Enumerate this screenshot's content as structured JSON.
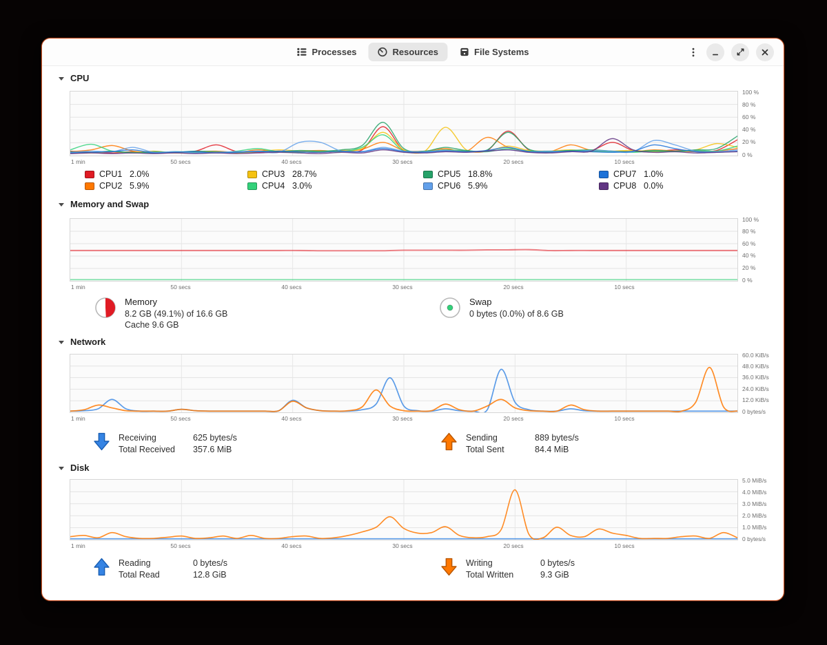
{
  "window": {
    "tabs": [
      {
        "label": "Processes",
        "icon": "process-list-icon",
        "active": false
      },
      {
        "label": "Resources",
        "icon": "speedometer-icon",
        "active": true
      },
      {
        "label": "File Systems",
        "icon": "disk-drive-icon",
        "active": false
      }
    ],
    "controls": {
      "menu_icon": "kebab-menu-icon",
      "minimize_icon": "minimize-icon",
      "maximize_icon": "restore-icon",
      "close_icon": "close-icon"
    }
  },
  "sections": {
    "cpu": {
      "title": "CPU",
      "legend": [
        {
          "name": "CPU1",
          "value": "2.0%",
          "color": "#e01b24"
        },
        {
          "name": "CPU2",
          "value": "5.9%",
          "color": "#ff7800"
        },
        {
          "name": "CPU3",
          "value": "28.7%",
          "color": "#f5c211"
        },
        {
          "name": "CPU4",
          "value": "3.0%",
          "color": "#33d17a"
        },
        {
          "name": "CPU5",
          "value": "18.8%",
          "color": "#26a269"
        },
        {
          "name": "CPU6",
          "value": "5.9%",
          "color": "#62a0ea"
        },
        {
          "name": "CPU7",
          "value": "1.0%",
          "color": "#1c71d8"
        },
        {
          "name": "CPU8",
          "value": "0.0%",
          "color": "#613583"
        }
      ]
    },
    "memory": {
      "title": "Memory and Swap",
      "memory": {
        "label": "Memory",
        "usage": "8.2 GB (49.1%) of 16.6 GB",
        "cache": "Cache 9.6 GB",
        "percent": 49.1,
        "color": "#e01b24",
        "icon": "memory-pie-icon"
      },
      "swap": {
        "label": "Swap",
        "usage": "0 bytes (0.0%) of 8.6 GB",
        "percent": 0.0,
        "color": "#33d17a",
        "icon": "swap-pie-icon"
      }
    },
    "network": {
      "title": "Network",
      "receiving": {
        "label": "Receiving",
        "rate": "625 bytes/s",
        "total_label": "Total Received",
        "total": "357.6 MiB",
        "direction": "down",
        "color": "#3584e4",
        "border": "#1a5fb4",
        "icon": "receiving-arrow-icon"
      },
      "sending": {
        "label": "Sending",
        "rate": "889 bytes/s",
        "total_label": "Total Sent",
        "total": "84.4 MiB",
        "direction": "up",
        "color": "#ff7800",
        "border": "#b85600",
        "icon": "sending-arrow-icon"
      }
    },
    "disk": {
      "title": "Disk",
      "reading": {
        "label": "Reading",
        "rate": "0 bytes/s",
        "total_label": "Total Read",
        "total": "12.8 GiB",
        "direction": "up",
        "color": "#3584e4",
        "border": "#1a5fb4",
        "icon": "reading-arrow-icon"
      },
      "writing": {
        "label": "Writing",
        "rate": "0 bytes/s",
        "total_label": "Total Written",
        "total": "9.3 GiB",
        "direction": "down",
        "color": "#ff7800",
        "border": "#b85600",
        "icon": "writing-arrow-icon"
      }
    }
  },
  "chart_data": [
    {
      "id": "cpu",
      "type": "line",
      "title": "CPU history",
      "ylim": [
        0,
        100
      ],
      "grid": true,
      "legend_position": "below",
      "y_ticks": [
        "100 %",
        "80 %",
        "60 %",
        "40 %",
        "20 %",
        "0 %"
      ],
      "x_ticks": [
        "1 min",
        "50 secs",
        "40 secs",
        "30 secs",
        "20 secs",
        "10 secs"
      ],
      "series": [
        {
          "name": "CPU1",
          "color": "#e01b24",
          "values": [
            6,
            4,
            3,
            5,
            3,
            4,
            6,
            16,
            5,
            4,
            6,
            5,
            4,
            6,
            8,
            45,
            7,
            5,
            8,
            6,
            7,
            38,
            8,
            5,
            6,
            7,
            20,
            7,
            5,
            8,
            6,
            7,
            24
          ]
        },
        {
          "name": "CPU2",
          "color": "#ff7800",
          "values": [
            5,
            8,
            15,
            6,
            4,
            3,
            5,
            6,
            4,
            8,
            5,
            6,
            7,
            5,
            9,
            20,
            7,
            6,
            10,
            6,
            28,
            12,
            6,
            5,
            16,
            7,
            6,
            5,
            8,
            6,
            5,
            6,
            10
          ]
        },
        {
          "name": "CPU3",
          "color": "#f5c211",
          "values": [
            4,
            3,
            5,
            4,
            6,
            3,
            4,
            5,
            3,
            5,
            8,
            6,
            5,
            7,
            10,
            36,
            8,
            6,
            44,
            8,
            6,
            14,
            7,
            6,
            8,
            5,
            6,
            7,
            5,
            6,
            8,
            18,
            12
          ]
        },
        {
          "name": "CPU4",
          "color": "#33d17a",
          "values": [
            8,
            17,
            6,
            4,
            3,
            5,
            4,
            3,
            6,
            10,
            5,
            4,
            6,
            5,
            12,
            32,
            6,
            5,
            8,
            6,
            5,
            10,
            6,
            5,
            7,
            6,
            5,
            4,
            6,
            5,
            7,
            6,
            14
          ]
        },
        {
          "name": "CPU5",
          "color": "#26a269",
          "values": [
            5,
            4,
            6,
            3,
            5,
            4,
            6,
            5,
            4,
            6,
            5,
            7,
            6,
            8,
            15,
            52,
            10,
            6,
            12,
            7,
            8,
            36,
            9,
            6,
            7,
            8,
            6,
            5,
            7,
            6,
            8,
            10,
            30
          ]
        },
        {
          "name": "CPU6",
          "color": "#62a0ea",
          "values": [
            4,
            6,
            5,
            12,
            4,
            5,
            3,
            4,
            5,
            6,
            4,
            20,
            20,
            6,
            5,
            12,
            6,
            5,
            7,
            5,
            6,
            8,
            5,
            6,
            5,
            7,
            6,
            5,
            23,
            16,
            6,
            5,
            8
          ]
        },
        {
          "name": "CPU7",
          "color": "#1c71d8",
          "values": [
            3,
            4,
            5,
            8,
            3,
            4,
            5,
            3,
            4,
            5,
            6,
            5,
            4,
            6,
            5,
            10,
            5,
            4,
            6,
            5,
            7,
            12,
            5,
            4,
            6,
            5,
            4,
            6,
            16,
            10,
            5,
            4,
            6
          ]
        },
        {
          "name": "CPU8",
          "color": "#613583",
          "values": [
            2,
            3,
            2,
            3,
            2,
            3,
            2,
            3,
            2,
            3,
            4,
            3,
            2,
            4,
            3,
            8,
            4,
            3,
            5,
            4,
            6,
            8,
            4,
            3,
            5,
            6,
            26,
            8,
            4,
            5,
            3,
            4,
            5
          ]
        }
      ]
    },
    {
      "id": "memory",
      "type": "line",
      "title": "Memory and Swap history",
      "ylim": [
        0,
        100
      ],
      "grid": true,
      "y_ticks": [
        "100 %",
        "80 %",
        "60 %",
        "40 %",
        "20 %",
        "0 %"
      ],
      "x_ticks": [
        "1 min",
        "50 secs",
        "40 secs",
        "30 secs",
        "20 secs",
        "10 secs"
      ],
      "series": [
        {
          "name": "Memory",
          "color": "#e01b24",
          "opacity": 0.55,
          "width": 2,
          "values": [
            49,
            49,
            49,
            49,
            49,
            49,
            49,
            49,
            49,
            49,
            49,
            49,
            48.6,
            48.6,
            48.6,
            48.6,
            49.4,
            49.4,
            49.4,
            49.4,
            50,
            50,
            50.4,
            48.8,
            49,
            49,
            49,
            49,
            49,
            49,
            49,
            49,
            49
          ]
        },
        {
          "name": "Swap",
          "color": "#33d17a",
          "opacity": 0.6,
          "width": 1.8,
          "values": [
            0.8,
            0.8,
            0.8,
            0.8,
            0.8,
            0.8,
            0.8,
            0.8,
            0.8,
            0.8,
            0.8,
            0.8,
            0.8,
            0.8,
            0.8,
            0.8,
            0.8,
            0.8,
            0.8,
            0.8,
            0.8,
            0.8,
            0.8,
            0.8,
            0.8,
            0.8,
            0.8,
            0.8,
            0.8,
            0.8,
            0.8,
            0.8,
            0.8
          ]
        }
      ]
    },
    {
      "id": "network",
      "type": "line",
      "title": "Network history",
      "ylim": [
        0,
        60
      ],
      "grid": true,
      "y_ticks": [
        "60.0 KiB/s",
        "48.0 KiB/s",
        "36.0 KiB/s",
        "24.0 KiB/s",
        "12.0 KiB/s",
        "0 bytes/s"
      ],
      "x_ticks": [
        "1 min",
        "50 secs",
        "40 secs",
        "30 secs",
        "20 secs",
        "10 secs"
      ],
      "series": [
        {
          "name": "Receiving",
          "color": "#3584e4",
          "opacity": 0.8,
          "width": 1.7,
          "values": [
            0.5,
            1,
            3,
            13,
            3,
            0.5,
            0.5,
            0.5,
            2.5,
            1,
            0.5,
            0.5,
            0.5,
            0.5,
            0.5,
            1,
            12,
            4,
            1,
            0.5,
            0.5,
            2,
            8,
            36,
            6,
            1,
            0.5,
            3,
            1,
            0.5,
            2,
            45,
            10,
            2,
            0.5,
            0.5,
            3,
            1,
            0.5,
            0.5,
            0.5,
            0.5,
            0.5,
            0.5,
            0.5,
            0.5,
            0.5,
            0.5,
            0.5
          ]
        },
        {
          "name": "Sending",
          "color": "#ff7800",
          "opacity": 0.85,
          "width": 1.7,
          "values": [
            0.5,
            2,
            7,
            4,
            1,
            0.5,
            0.5,
            0.5,
            2.5,
            1,
            0.5,
            0.5,
            0.5,
            0.5,
            0.5,
            1,
            11,
            4,
            1,
            0.5,
            1,
            5,
            23,
            6,
            1,
            0.5,
            1,
            8,
            2,
            0.5,
            6,
            13,
            4,
            1,
            0.5,
            0.5,
            7,
            2,
            0.5,
            0.5,
            0.5,
            0.5,
            0.5,
            0.5,
            0.5,
            10,
            47,
            5,
            0.5
          ]
        }
      ]
    },
    {
      "id": "disk",
      "type": "line",
      "title": "Disk history",
      "ylim": [
        0,
        5
      ],
      "grid": true,
      "y_ticks": [
        "5.0 MiB/s",
        "4.0 MiB/s",
        "3.0 MiB/s",
        "2.0 MiB/s",
        "1.0 MiB/s",
        "0 bytes/s"
      ],
      "x_ticks": [
        "1 min",
        "50 secs",
        "40 secs",
        "30 secs",
        "20 secs",
        "10 secs"
      ],
      "series": [
        {
          "name": "Reading",
          "color": "#3584e4",
          "opacity": 0.8,
          "width": 1.6,
          "values": [
            0.02,
            0.02,
            0.02,
            0.02,
            0.02,
            0.02,
            0.02,
            0.02,
            0.02,
            0.02,
            0.02,
            0.02,
            0.02,
            0.02,
            0.02,
            0.02,
            0.02,
            0.02,
            0.02,
            0.02,
            0.02,
            0.02,
            0.02,
            0.02,
            0.02,
            0.02,
            0.02,
            0.02,
            0.02,
            0.02,
            0.02,
            0.02,
            0.02,
            0.02,
            0.02,
            0.02,
            0.02,
            0.02,
            0.02,
            0.02,
            0.02,
            0.02,
            0.02,
            0.02,
            0.02,
            0.02,
            0.02,
            0.02,
            0.02
          ]
        },
        {
          "name": "Writing",
          "color": "#ff7800",
          "opacity": 0.85,
          "width": 1.6,
          "values": [
            0.2,
            0.3,
            0.1,
            0.55,
            0.2,
            0.05,
            0.05,
            0.15,
            0.25,
            0.05,
            0.1,
            0.25,
            0.05,
            0.3,
            0.05,
            0.05,
            0.2,
            0.25,
            0.05,
            0.1,
            0.3,
            0.6,
            1.0,
            1.9,
            0.9,
            0.5,
            0.55,
            1.05,
            0.3,
            0.1,
            0.2,
            0.8,
            4.2,
            0.4,
            0.1,
            1.0,
            0.3,
            0.2,
            0.85,
            0.5,
            0.3,
            0.05,
            0.05,
            0.05,
            0.2,
            0.25,
            0.05,
            0.55,
            0.1
          ]
        }
      ]
    }
  ]
}
